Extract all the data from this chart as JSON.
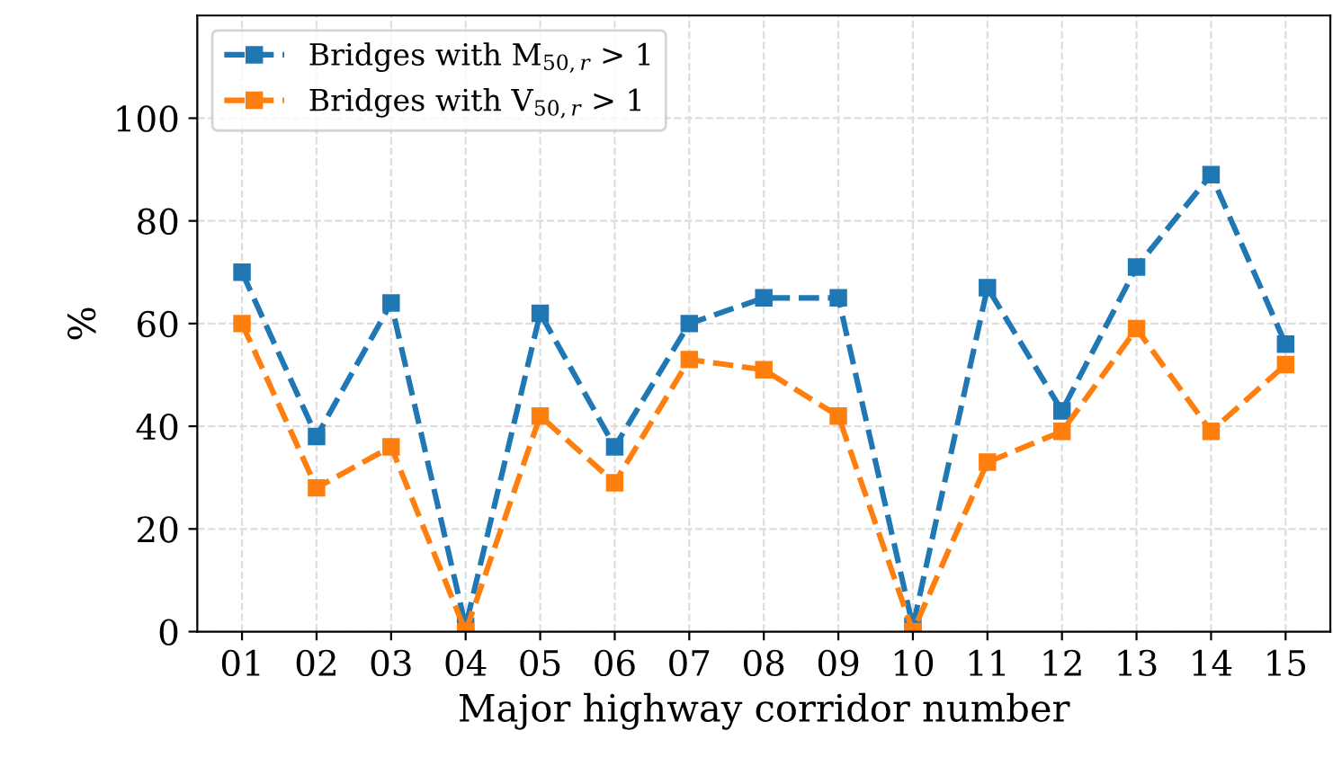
{
  "chart_data": {
    "type": "line",
    "xlabel": "Major highway corridor number",
    "ylabel": "%",
    "categories": [
      "01",
      "02",
      "03",
      "04",
      "05",
      "06",
      "07",
      "08",
      "09",
      "10",
      "11",
      "12",
      "13",
      "14",
      "15"
    ],
    "series": [
      {
        "name": "Bridges with M$_{50,r}$ > 1",
        "color": "#1f77b4",
        "values": [
          70,
          38,
          64,
          1,
          62,
          36,
          60,
          65,
          65,
          1,
          67,
          43,
          71,
          89,
          56
        ]
      },
      {
        "name": "Bridges with V$_{50,r}$ > 1",
        "color": "#ff7f0e",
        "values": [
          60,
          28,
          36,
          0,
          42,
          29,
          53,
          51,
          42,
          0,
          33,
          39,
          59,
          39,
          52
        ]
      }
    ],
    "ylim": [
      0,
      120
    ],
    "yticks": [
      0,
      20,
      40,
      60,
      80,
      100
    ],
    "grid": true,
    "legend": "top left",
    "marker": "square",
    "line_style": "dashed"
  }
}
